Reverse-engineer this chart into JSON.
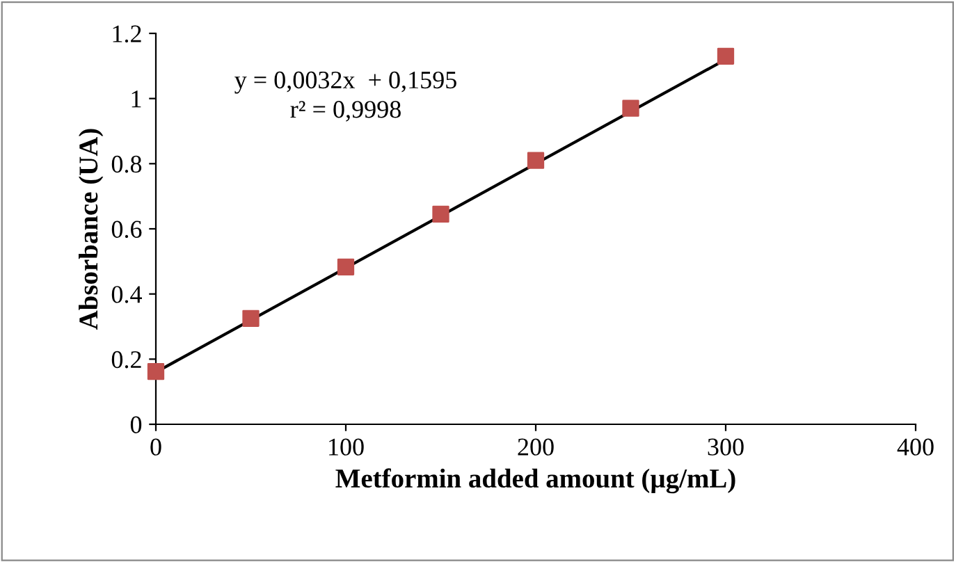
{
  "chart_data": {
    "type": "scatter",
    "xlabel": "Metformin added amount (µg/mL)",
    "ylabel": "Absorbance (UA)",
    "x": [
      0,
      50,
      100,
      150,
      200,
      250,
      300
    ],
    "series": [
      {
        "color": "#c0504d",
        "marker": "square",
        "values": [
          0.162,
          0.325,
          0.483,
          0.645,
          0.81,
          0.97,
          1.13
        ]
      },
      {
        "type": "line",
        "color": "#000000",
        "x": [
          0,
          300
        ],
        "values": [
          0.16,
          1.12
        ],
        "marker": "none"
      }
    ],
    "annotations": [
      "y = 0,0032x  + 0,1595",
      "r² = 0,9998"
    ],
    "xlim": [
      0,
      400
    ],
    "xticks": [
      0,
      100,
      200,
      300,
      400
    ],
    "ylim": [
      0,
      1.2
    ],
    "yticks": [
      0,
      0.2,
      0.4,
      0.6,
      0.8,
      1,
      1.2
    ],
    "grid": false,
    "legend": false
  }
}
